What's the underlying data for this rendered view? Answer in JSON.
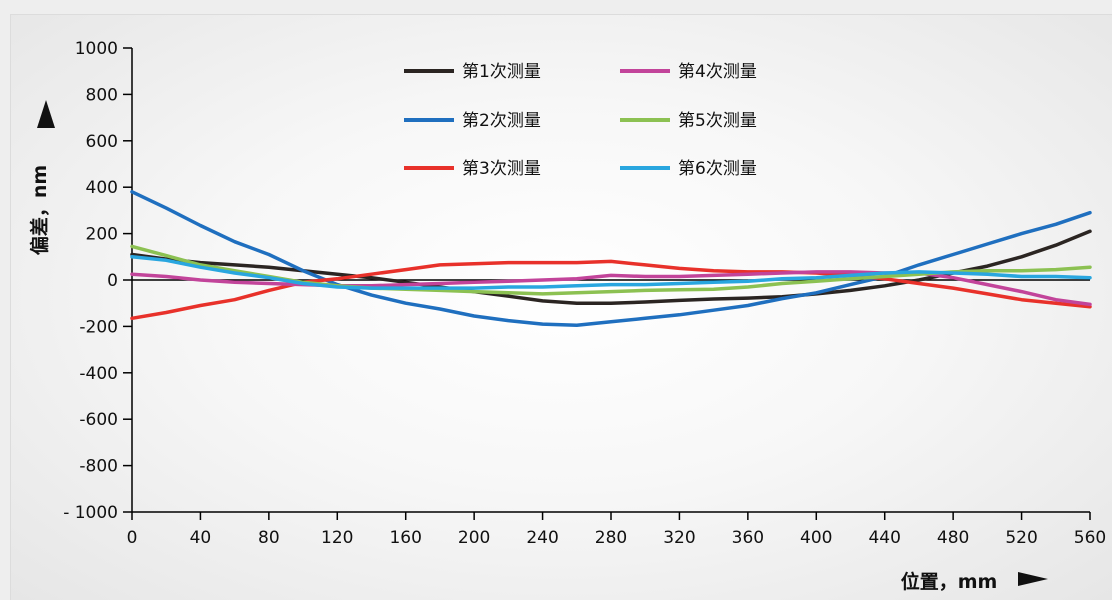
{
  "chart_data": {
    "type": "line",
    "xlabel": "位置，mm",
    "ylabel": "偏差，nm",
    "xlim": [
      0,
      560
    ],
    "ylim": [
      -1000,
      1000
    ],
    "x_ticks": [
      "0",
      "40",
      "80",
      "120",
      "160",
      "200",
      "240",
      "280",
      "320",
      "360",
      "400",
      "440",
      "480",
      "520",
      "560"
    ],
    "y_ticks": [
      "1000",
      "800",
      "600",
      "400",
      "200",
      "0",
      "-200",
      "-400",
      "-600",
      "-800",
      "- 1000"
    ],
    "grid": false,
    "legend_position": "top",
    "x": [
      0,
      20,
      40,
      60,
      80,
      100,
      120,
      140,
      160,
      180,
      200,
      220,
      240,
      260,
      280,
      300,
      320,
      340,
      360,
      380,
      400,
      420,
      440,
      460,
      480,
      500,
      520,
      540,
      560
    ],
    "series": [
      {
        "name": "第1次测量",
        "color": "#2b2522",
        "values": [
          110,
          90,
          75,
          65,
          55,
          40,
          25,
          10,
          -10,
          -30,
          -50,
          -70,
          -90,
          -100,
          -100,
          -95,
          -88,
          -82,
          -78,
          -72,
          -60,
          -45,
          -25,
          0,
          30,
          60,
          100,
          150,
          210
        ]
      },
      {
        "name": "第2次测量",
        "color": "#1f6fbf",
        "values": [
          380,
          310,
          235,
          165,
          110,
          40,
          -20,
          -65,
          -100,
          -125,
          -155,
          -175,
          -190,
          -195,
          -180,
          -165,
          -150,
          -130,
          -110,
          -80,
          -55,
          -20,
          15,
          65,
          110,
          155,
          200,
          240,
          290
        ]
      },
      {
        "name": "第3次测量",
        "color": "#e8312a",
        "values": [
          -165,
          -140,
          -110,
          -85,
          -45,
          -10,
          5,
          25,
          45,
          65,
          70,
          75,
          75,
          75,
          80,
          65,
          50,
          40,
          35,
          35,
          30,
          20,
          5,
          -15,
          -35,
          -60,
          -85,
          -100,
          -115
        ]
      },
      {
        "name": "第4次测量",
        "color": "#c2449a",
        "values": [
          25,
          15,
          0,
          -10,
          -15,
          -20,
          -25,
          -25,
          -20,
          -15,
          -10,
          -5,
          0,
          5,
          20,
          15,
          15,
          20,
          25,
          30,
          35,
          35,
          30,
          30,
          10,
          -20,
          -50,
          -85,
          -105
        ]
      },
      {
        "name": "第5次测量",
        "color": "#8cc152",
        "values": [
          145,
          105,
          65,
          40,
          15,
          -10,
          -25,
          -35,
          -40,
          -45,
          -50,
          -55,
          -60,
          -55,
          -50,
          -45,
          -42,
          -40,
          -30,
          -15,
          -5,
          5,
          15,
          25,
          35,
          40,
          40,
          45,
          55
        ]
      },
      {
        "name": "第6次测量",
        "color": "#29a6df",
        "values": [
          100,
          85,
          55,
          30,
          10,
          -15,
          -30,
          -35,
          -35,
          -35,
          -35,
          -30,
          -30,
          -25,
          -20,
          -20,
          -15,
          -10,
          -5,
          5,
          10,
          20,
          30,
          35,
          30,
          25,
          15,
          15,
          10
        ]
      }
    ]
  }
}
